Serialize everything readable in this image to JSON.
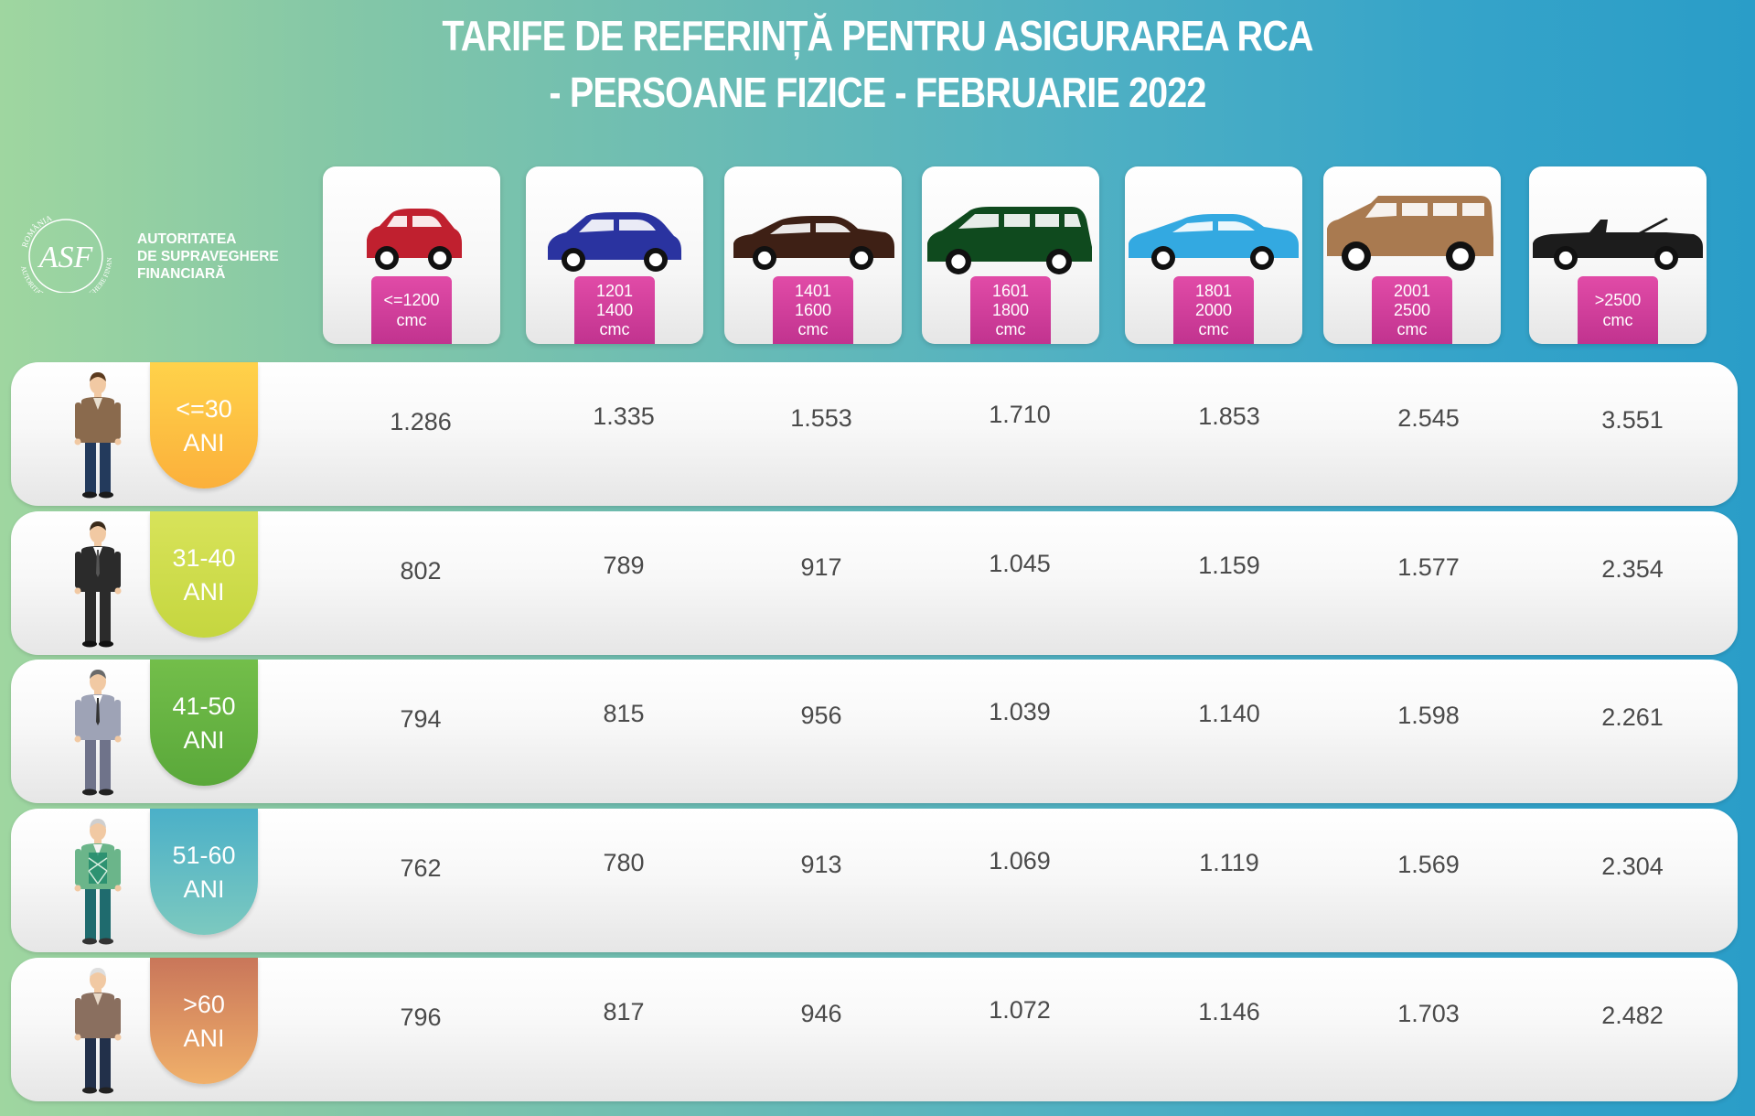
{
  "title": {
    "line1": "TARIFE DE REFERINȚĂ PENTRU ASIGURAREA RCA",
    "line2": "- PERSOANE FIZICE - FEBRUARIE 2022"
  },
  "logo": {
    "line1": "AUTORITATEA",
    "line2": "DE SUPRAVEGHERE",
    "line3": "FINANCIARĂ",
    "emblem": "ASF",
    "ring_top": "ROMÂNIA",
    "ring_bottom": "AUTORITATEA DE SUPRAVEGHERE FINANCIARĂ"
  },
  "categories": [
    {
      "lines": [
        "<=1200",
        "cmc"
      ],
      "car_color": "#c0202f",
      "icon": "small-hatchback-icon"
    },
    {
      "lines": [
        "1201",
        "1400",
        "cmc"
      ],
      "car_color": "#2a33a0",
      "icon": "hatchback-icon"
    },
    {
      "lines": [
        "1401",
        "1600",
        "cmc"
      ],
      "car_color": "#3e2015",
      "icon": "sedan-icon"
    },
    {
      "lines": [
        "1601",
        "1800",
        "cmc"
      ],
      "car_color": "#0f4a1e",
      "icon": "minivan-icon"
    },
    {
      "lines": [
        "1801",
        "2000",
        "cmc"
      ],
      "car_color": "#33a9e1",
      "icon": "sports-sedan-icon"
    },
    {
      "lines": [
        "2001",
        "2500",
        "cmc"
      ],
      "car_color": "#a97a50",
      "icon": "suv-icon"
    },
    {
      "lines": [
        ">2500",
        "cmc"
      ],
      "car_color": "#1c1c1c",
      "icon": "convertible-icon"
    }
  ],
  "rows": [
    {
      "age": "<=30",
      "unit": "ANI",
      "color_top": "#ffd24a",
      "color_bottom": "#fbb03b",
      "icon": "young-man-icon",
      "values": [
        "1.286",
        "1.335",
        "1.553",
        "1.710",
        "1.853",
        "2.545",
        "3.551"
      ]
    },
    {
      "age": "31-40",
      "unit": "ANI",
      "color_top": "#d8e35a",
      "color_bottom": "#c5d63f",
      "icon": "businessman-icon",
      "values": [
        "802",
        "789",
        "917",
        "1.045",
        "1.159",
        "1.577",
        "2.354"
      ]
    },
    {
      "age": "41-50",
      "unit": "ANI",
      "color_top": "#73be4a",
      "color_bottom": "#5aa83a",
      "icon": "middle-aged-man-icon",
      "values": [
        "794",
        "815",
        "956",
        "1.039",
        "1.140",
        "1.598",
        "2.261"
      ]
    },
    {
      "age": "51-60",
      "unit": "ANI",
      "color_top": "#4bb0c8",
      "color_bottom": "#7cc9bf",
      "icon": "man-with-vest-icon",
      "values": [
        "762",
        "780",
        "913",
        "1.069",
        "1.119",
        "1.569",
        "2.304"
      ]
    },
    {
      "age": ">60",
      "unit": "ANI",
      "color_top": "#c9765a",
      "color_bottom": "#f0b06a",
      "icon": "elderly-man-icon",
      "values": [
        "796",
        "817",
        "946",
        "1.072",
        "1.146",
        "1.703",
        "2.482"
      ]
    }
  ]
}
